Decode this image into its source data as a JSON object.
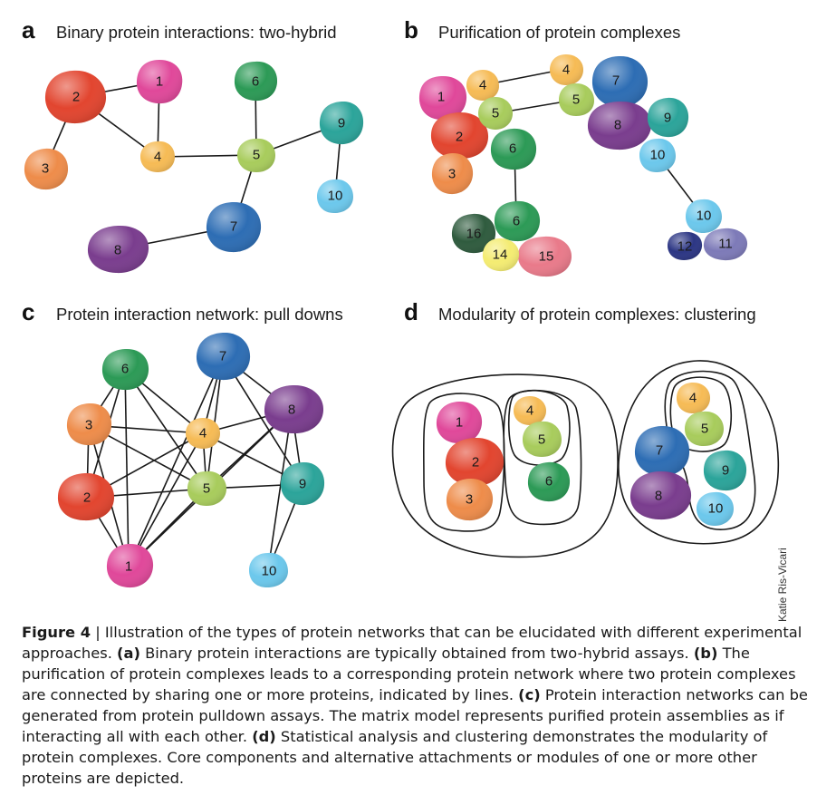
{
  "panels": [
    {
      "letter": "a",
      "title": "Binary protein interactions: two-hybrid",
      "nodes": [
        {
          "label": "1",
          "color": "#e0489a"
        },
        {
          "label": "2",
          "color": "#e2452f"
        },
        {
          "label": "3",
          "color": "#ee8c4a"
        },
        {
          "label": "4",
          "color": "#f6bb55"
        },
        {
          "label": "5",
          "color": "#a8cc5c"
        },
        {
          "label": "6",
          "color": "#2c9a56"
        },
        {
          "label": "7",
          "color": "#2d6db4"
        },
        {
          "label": "8",
          "color": "#7a3d8e"
        },
        {
          "label": "9",
          "color": "#2ba49a"
        },
        {
          "label": "10",
          "color": "#6cc8ec"
        }
      ]
    },
    {
      "letter": "b",
      "title": "Purification of protein complexes",
      "nodes": [
        {
          "label": "1",
          "color": "#e0489a"
        },
        {
          "label": "4",
          "color": "#f6bb55"
        },
        {
          "label": "5",
          "color": "#a8cc5c"
        },
        {
          "label": "2",
          "color": "#e2452f"
        },
        {
          "label": "3",
          "color": "#ee8c4a"
        },
        {
          "label": "6",
          "color": "#2c9a56"
        },
        {
          "label": "4",
          "color": "#f6bb55"
        },
        {
          "label": "5",
          "color": "#a8cc5c"
        },
        {
          "label": "7",
          "color": "#2d6db4"
        },
        {
          "label": "8",
          "color": "#7a3d8e"
        },
        {
          "label": "9",
          "color": "#2ba49a"
        },
        {
          "label": "10",
          "color": "#6cc8ec"
        },
        {
          "label": "16",
          "color": "#2f5b3e"
        },
        {
          "label": "6",
          "color": "#2c9a56"
        },
        {
          "label": "14",
          "color": "#f4ec72"
        },
        {
          "label": "15",
          "color": "#e97a8a"
        },
        {
          "label": "10",
          "color": "#6cc8ec"
        },
        {
          "label": "12",
          "color": "#2c3684"
        },
        {
          "label": "11",
          "color": "#7d7ab8"
        }
      ]
    },
    {
      "letter": "c",
      "title": "Protein interaction network: pull downs",
      "nodes": [
        {
          "label": "6",
          "color": "#2c9a56"
        },
        {
          "label": "7",
          "color": "#2d6db4"
        },
        {
          "label": "3",
          "color": "#ee8c4a"
        },
        {
          "label": "4",
          "color": "#f6bb55"
        },
        {
          "label": "8",
          "color": "#7a3d8e"
        },
        {
          "label": "5",
          "color": "#a8cc5c"
        },
        {
          "label": "2",
          "color": "#e2452f"
        },
        {
          "label": "9",
          "color": "#2ba49a"
        },
        {
          "label": "1",
          "color": "#e0489a"
        },
        {
          "label": "10",
          "color": "#6cc8ec"
        }
      ]
    },
    {
      "letter": "d",
      "title": "Modularity of protein complexes: clustering",
      "nodes": [
        {
          "label": "1",
          "color": "#e0489a"
        },
        {
          "label": "2",
          "color": "#e2452f"
        },
        {
          "label": "3",
          "color": "#ee8c4a"
        },
        {
          "label": "4",
          "color": "#f6bb55"
        },
        {
          "label": "5",
          "color": "#a8cc5c"
        },
        {
          "label": "6",
          "color": "#2c9a56"
        },
        {
          "label": "4",
          "color": "#f6bb55"
        },
        {
          "label": "5",
          "color": "#a8cc5c"
        },
        {
          "label": "7",
          "color": "#2d6db4"
        },
        {
          "label": "8",
          "color": "#7a3d8e"
        },
        {
          "label": "9",
          "color": "#2ba49a"
        },
        {
          "label": "10",
          "color": "#6cc8ec"
        }
      ]
    }
  ],
  "credit": "Katie Ris-Vicari",
  "caption": {
    "figure_label": "Figure 4",
    "intro": " | Illustration of the types of protein networks that can be elucidated with different experimental approaches. ",
    "a_letter": "(a)",
    "a_text": " Binary protein interactions are typically obtained from two-hybrid assays. ",
    "b_letter": "(b)",
    "b_text": " The purification of protein complexes leads to a corresponding protein network where two protein complexes are connected by sharing one or more proteins, indicated by lines. ",
    "c_letter": "(c)",
    "c_text": " Protein interaction networks can be generated from protein pulldown assays. The matrix model represents purified protein assemblies as if interacting all with each other. ",
    "d_letter": "(d)",
    "d_text": " Statistical analysis and clustering demonstrates the modularity of protein complexes. Core components and alternative attachments or modules of one or more other proteins are depicted."
  }
}
